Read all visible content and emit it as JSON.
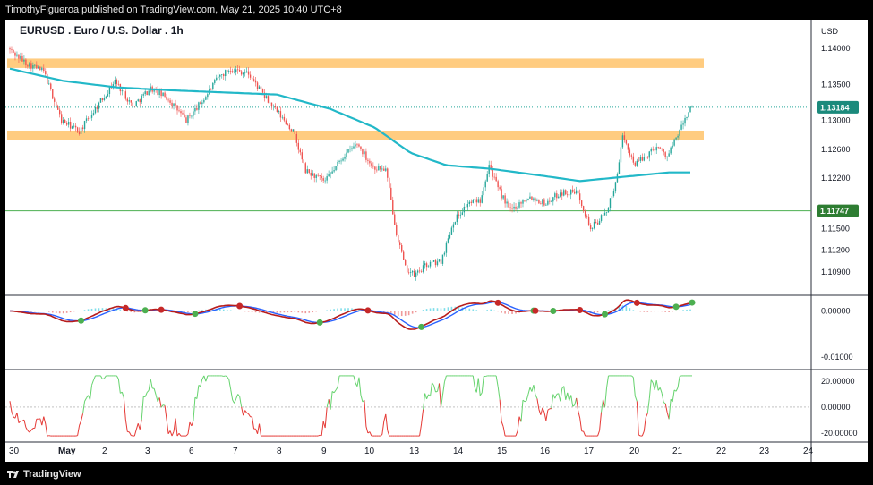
{
  "header": {
    "published_by": "TimothyFigueroa published on TradingView.com, May 21, 2025 10:40 UTC+8"
  },
  "footer": {
    "brand": "TradingView"
  },
  "colors": {
    "up": "#26a69a",
    "down": "#ef5350",
    "ma": "#22b8c8",
    "zone": "#ffcc80",
    "level_line": "#4caf50",
    "last_price_bg": "#1b8a7c",
    "level_bg": "#2e7d32"
  },
  "chart_data": [
    {
      "type": "candlestick",
      "title": "EURUSD . Euro / U.S. Dollar . 1h",
      "currency": "USD",
      "ylim": [
        1.106,
        1.143
      ],
      "y_ticks": [
        "1.14000",
        "1.13500",
        "1.13000",
        "1.12600",
        "1.12200",
        "1.11500",
        "1.11200",
        "1.10900"
      ],
      "x_tick_labels": [
        "30",
        "May",
        "2",
        "3",
        "6",
        "7",
        "8",
        "9",
        "10",
        "13",
        "14",
        "15",
        "16",
        "17",
        "20",
        "21",
        "22",
        "23",
        "24"
      ],
      "last_price": {
        "label": "1.13184",
        "value": 1.13184
      },
      "level_line": {
        "label": "1.11747",
        "value": 1.11747
      },
      "resistance_zones": [
        {
          "low": 1.1373,
          "high": 1.1386
        },
        {
          "low": 1.1273,
          "high": 1.1286
        }
      ],
      "moving_average_anchors": [
        {
          "bar": 0,
          "price": 1.1372
        },
        {
          "bar": 30,
          "price": 1.1355
        },
        {
          "bar": 60,
          "price": 1.1346
        },
        {
          "bar": 90,
          "price": 1.1342
        },
        {
          "bar": 120,
          "price": 1.1339
        },
        {
          "bar": 150,
          "price": 1.1336
        },
        {
          "bar": 180,
          "price": 1.1316
        },
        {
          "bar": 205,
          "price": 1.129
        },
        {
          "bar": 225,
          "price": 1.1255
        },
        {
          "bar": 245,
          "price": 1.1238
        },
        {
          "bar": 270,
          "price": 1.1233
        },
        {
          "bar": 300,
          "price": 1.1223
        },
        {
          "bar": 320,
          "price": 1.1216
        },
        {
          "bar": 345,
          "price": 1.1222
        },
        {
          "bar": 370,
          "price": 1.1228
        }
      ],
      "price_path_anchors": [
        {
          "bar": 0,
          "price": 1.14
        },
        {
          "bar": 10,
          "price": 1.138
        },
        {
          "bar": 20,
          "price": 1.1368
        },
        {
          "bar": 30,
          "price": 1.13
        },
        {
          "bar": 40,
          "price": 1.1285
        },
        {
          "bar": 50,
          "price": 1.132
        },
        {
          "bar": 60,
          "price": 1.1355
        },
        {
          "bar": 70,
          "price": 1.132
        },
        {
          "bar": 80,
          "price": 1.1345
        },
        {
          "bar": 90,
          "price": 1.133
        },
        {
          "bar": 100,
          "price": 1.13
        },
        {
          "bar": 110,
          "price": 1.133
        },
        {
          "bar": 118,
          "price": 1.136
        },
        {
          "bar": 125,
          "price": 1.1372
        },
        {
          "bar": 135,
          "price": 1.1365
        },
        {
          "bar": 145,
          "price": 1.133
        },
        {
          "bar": 155,
          "price": 1.13
        },
        {
          "bar": 160,
          "price": 1.1285
        },
        {
          "bar": 167,
          "price": 1.123
        },
        {
          "bar": 178,
          "price": 1.1215
        },
        {
          "bar": 188,
          "price": 1.125
        },
        {
          "bar": 196,
          "price": 1.1268
        },
        {
          "bar": 205,
          "price": 1.1235
        },
        {
          "bar": 212,
          "price": 1.1232
        },
        {
          "bar": 218,
          "price": 1.1145
        },
        {
          "bar": 223,
          "price": 1.1095
        },
        {
          "bar": 228,
          "price": 1.1085
        },
        {
          "bar": 235,
          "price": 1.11
        },
        {
          "bar": 243,
          "price": 1.1105
        },
        {
          "bar": 250,
          "price": 1.116
        },
        {
          "bar": 258,
          "price": 1.1185
        },
        {
          "bar": 265,
          "price": 1.119
        },
        {
          "bar": 270,
          "price": 1.124
        },
        {
          "bar": 275,
          "price": 1.1205
        },
        {
          "bar": 282,
          "price": 1.1175
        },
        {
          "bar": 292,
          "price": 1.1195
        },
        {
          "bar": 302,
          "price": 1.1185
        },
        {
          "bar": 310,
          "price": 1.12
        },
        {
          "bar": 320,
          "price": 1.12
        },
        {
          "bar": 327,
          "price": 1.115
        },
        {
          "bar": 335,
          "price": 1.117
        },
        {
          "bar": 340,
          "price": 1.12
        },
        {
          "bar": 345,
          "price": 1.1275
        },
        {
          "bar": 352,
          "price": 1.124
        },
        {
          "bar": 358,
          "price": 1.125
        },
        {
          "bar": 364,
          "price": 1.1265
        },
        {
          "bar": 370,
          "price": 1.125
        },
        {
          "bar": 375,
          "price": 1.1275
        },
        {
          "bar": 383,
          "price": 1.1318
        }
      ]
    },
    {
      "type": "line",
      "title": "",
      "ylim": [
        -0.0115,
        0.003
      ],
      "y_ticks": [
        "0.00000",
        "-0.01000"
      ],
      "zero": 0
    },
    {
      "type": "line",
      "title": "",
      "ylim": [
        -24,
        26
      ],
      "y_ticks": [
        "20.00000",
        "0.00000",
        "-20.00000"
      ],
      "zero": 0
    }
  ]
}
